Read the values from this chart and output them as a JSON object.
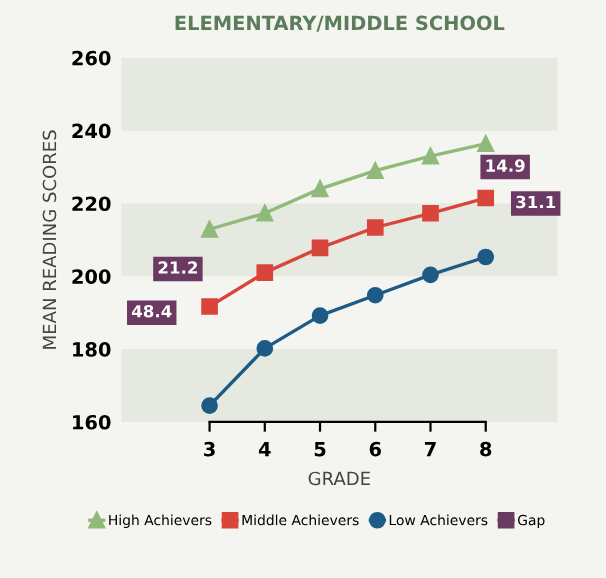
{
  "chart_data": {
    "type": "line",
    "title": "ELEMENTARY/MIDDLE SCHOOL",
    "xlabel": "GRADE",
    "ylabel": "MEAN READING SCORES",
    "categories": [
      "3",
      "4",
      "5",
      "6",
      "7",
      "8"
    ],
    "series": [
      {
        "name": "High Achievers",
        "color": "#8fba7a",
        "marker": "triangle",
        "values": [
          212.9,
          217.3,
          224.0,
          229.0,
          233.0,
          236.4
        ]
      },
      {
        "name": "Middle Achievers",
        "color": "#d9453a",
        "marker": "square",
        "values": [
          191.7,
          201.0,
          207.8,
          213.4,
          217.3,
          221.5
        ]
      },
      {
        "name": "Low Achievers",
        "color": "#1d5a85",
        "marker": "circle",
        "values": [
          164.5,
          180.2,
          189.2,
          194.8,
          200.4,
          205.3
        ]
      },
      {
        "name": "Gap",
        "color": "#6b3a62",
        "marker": "square",
        "values": [
          null,
          null,
          null,
          null,
          null,
          null
        ]
      }
    ],
    "annotations": [
      "21.2",
      "48.4",
      "14.9",
      "31.1"
    ],
    "bands": [
      {
        "axis": "y",
        "from": 160,
        "to": 180,
        "color": "#e6e9e0"
      },
      {
        "axis": "y",
        "from": 200,
        "to": 220,
        "color": "#e6e9e0"
      },
      {
        "axis": "y",
        "from": 240,
        "to": 260,
        "color": "#e6e9e0"
      }
    ],
    "ylim": [
      160,
      260
    ],
    "yticks": [
      160,
      180,
      200,
      220,
      240,
      260
    ],
    "grid": false,
    "legend": "bottom",
    "line_style": "solid"
  }
}
